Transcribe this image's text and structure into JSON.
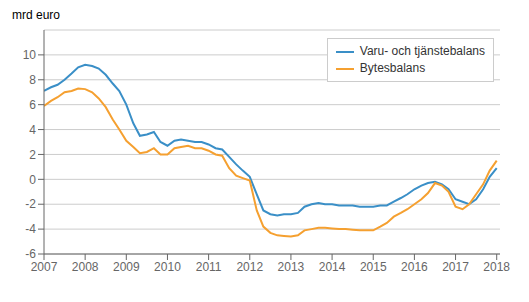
{
  "chart_data": {
    "type": "line",
    "y_label": "mrd euro",
    "x": [
      2007.0,
      2007.17,
      2007.33,
      2007.5,
      2007.67,
      2007.83,
      2008.0,
      2008.17,
      2008.33,
      2008.5,
      2008.67,
      2008.83,
      2009.0,
      2009.17,
      2009.33,
      2009.5,
      2009.67,
      2009.83,
      2010.0,
      2010.17,
      2010.33,
      2010.5,
      2010.67,
      2010.83,
      2011.0,
      2011.17,
      2011.33,
      2011.5,
      2011.67,
      2011.83,
      2012.0,
      2012.17,
      2012.33,
      2012.5,
      2012.67,
      2012.83,
      2013.0,
      2013.17,
      2013.33,
      2013.5,
      2013.67,
      2013.83,
      2014.0,
      2014.17,
      2014.33,
      2014.5,
      2014.67,
      2014.83,
      2015.0,
      2015.17,
      2015.33,
      2015.5,
      2015.67,
      2015.83,
      2016.0,
      2016.17,
      2016.33,
      2016.5,
      2016.67,
      2016.83,
      2017.0,
      2017.17,
      2017.33,
      2017.5,
      2017.67,
      2017.83,
      2018.0
    ],
    "series": [
      {
        "name": "Varu- och tjänstebalans",
        "color": "#3a8fc7",
        "values": [
          7.1,
          7.4,
          7.6,
          8.0,
          8.5,
          9.0,
          9.2,
          9.1,
          8.9,
          8.4,
          7.7,
          7.1,
          6.0,
          4.5,
          3.5,
          3.6,
          3.8,
          3.0,
          2.7,
          3.1,
          3.2,
          3.1,
          3.0,
          3.0,
          2.8,
          2.5,
          2.4,
          1.8,
          1.2,
          0.7,
          0.2,
          -1.2,
          -2.5,
          -2.8,
          -2.9,
          -2.8,
          -2.8,
          -2.7,
          -2.2,
          -2.0,
          -1.9,
          -2.0,
          -2.0,
          -2.1,
          -2.1,
          -2.1,
          -2.2,
          -2.2,
          -2.2,
          -2.1,
          -2.1,
          -1.8,
          -1.5,
          -1.2,
          -0.8,
          -0.5,
          -0.3,
          -0.2,
          -0.4,
          -0.8,
          -1.6,
          -1.8,
          -2.0,
          -1.6,
          -0.8,
          0.2,
          0.9
        ]
      },
      {
        "name": "Bytesbalans",
        "color": "#f5a030",
        "values": [
          5.9,
          6.3,
          6.6,
          7.0,
          7.1,
          7.3,
          7.25,
          7.0,
          6.5,
          5.8,
          4.8,
          4.0,
          3.1,
          2.6,
          2.1,
          2.2,
          2.5,
          2.0,
          2.0,
          2.5,
          2.6,
          2.7,
          2.5,
          2.5,
          2.3,
          2.0,
          1.9,
          0.9,
          0.3,
          0.1,
          -0.1,
          -2.5,
          -3.8,
          -4.3,
          -4.5,
          -4.55,
          -4.6,
          -4.5,
          -4.1,
          -4.0,
          -3.9,
          -3.9,
          -3.95,
          -4.0,
          -4.0,
          -4.05,
          -4.1,
          -4.1,
          -4.1,
          -3.8,
          -3.5,
          -3.0,
          -2.7,
          -2.4,
          -2.0,
          -1.6,
          -1.1,
          -0.3,
          -0.5,
          -1.0,
          -2.2,
          -2.4,
          -2.0,
          -1.2,
          -0.4,
          0.7,
          1.5
        ]
      }
    ],
    "xlim": [
      2007.0,
      2018.08
    ],
    "xticks": [
      2007,
      2008,
      2009,
      2010,
      2011,
      2012,
      2013,
      2014,
      2015,
      2016,
      2017,
      2018
    ],
    "ylim": [
      -6,
      12
    ],
    "yticks": [
      -6,
      -4,
      -2,
      0,
      2,
      4,
      6,
      8,
      10
    ],
    "grid": true,
    "legend": "upper right"
  }
}
